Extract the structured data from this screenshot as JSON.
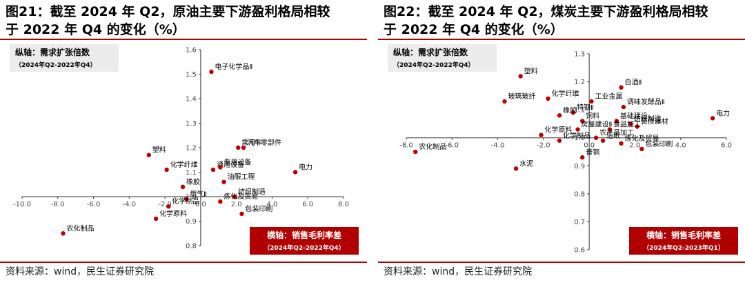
{
  "panels": [
    {
      "title_line1": "图21：截至 2024 年 Q2，原油主要下游盈利格局相较",
      "title_line2": "于 2022 年 Q4 的变化（%）",
      "yaxis_box_line1": "纵轴：需求扩张倍数",
      "yaxis_box_line2": "（2024年Q2-2022年Q4）",
      "xaxis_box_line1": "横轴：销售毛利率差",
      "xaxis_box_line2": "（2024年Q2-2022年Q4）",
      "source": "资料来源：wind，民生证券研究院"
    },
    {
      "title_line1": "图22：截至 2024 年 Q2，煤炭主要下游盈利格局相较",
      "title_line2": "于 2022 年 Q4 的变化（%）",
      "yaxis_box_line1": "纵轴：需求扩张倍数",
      "yaxis_box_line2": "（2024年Q2-2022年Q4）",
      "xaxis_box_line1": "横轴：销售毛利率差",
      "xaxis_box_line2": "（2024年Q2-2023年Q1）",
      "source": "资料来源：wind，民生证券研究院"
    }
  ],
  "colors": {
    "accent": "#b00000",
    "point": "#c00000",
    "box_gray": "#ececec"
  },
  "chart_data": [
    {
      "type": "scatter",
      "xlim": [
        -10,
        8
      ],
      "ylim": [
        0.8,
        1.6
      ],
      "x_ticks": [
        -10.0,
        -8.0,
        -6.0,
        -4.0,
        -2.0,
        0.0,
        2.0,
        4.0,
        6.0,
        8.0
      ],
      "y_ticks": [
        0.8,
        0.9,
        1.0,
        1.1,
        1.2,
        1.3,
        1.4,
        1.5,
        1.6
      ],
      "x_tick_labels": [
        "-10.0",
        "-8.0",
        "-6.0",
        "-4.0",
        "-2.0",
        "0.0",
        "2.0",
        "4.0",
        "6.0",
        "8.0"
      ],
      "y_tick_labels": [
        "0.8",
        "0.9",
        "1.0",
        "1.1",
        "1.2",
        "1.3",
        "1.4",
        "1.5",
        "1.6"
      ],
      "grid": false,
      "points": [
        {
          "label": "电子化学品Ⅱ",
          "x": 0.6,
          "y": 1.51
        },
        {
          "label": "乘用车",
          "x": 2.1,
          "y": 1.2
        },
        {
          "label": "汽车零部件",
          "x": 2.4,
          "y": 1.2
        },
        {
          "label": "塑料",
          "x": -2.9,
          "y": 1.17
        },
        {
          "label": "化学纤维",
          "x": -1.9,
          "y": 1.11
        },
        {
          "label": "通用设备",
          "x": 0.7,
          "y": 1.11
        },
        {
          "label": "专用设备",
          "x": 1.1,
          "y": 1.12
        },
        {
          "label": "电力",
          "x": 5.3,
          "y": 1.1
        },
        {
          "label": "橡胶",
          "x": -1.0,
          "y": 1.04
        },
        {
          "label": "油服工程",
          "x": 1.3,
          "y": 1.06
        },
        {
          "label": "纺织制造",
          "x": 1.9,
          "y": 1.0
        },
        {
          "label": "燃气Ⅱ",
          "x": -0.8,
          "y": 0.99
        },
        {
          "label": "炼化及贸易",
          "x": 1.1,
          "y": 0.98
        },
        {
          "label": "化学制品",
          "x": -1.8,
          "y": 0.96
        },
        {
          "label": "包装印刷",
          "x": 2.3,
          "y": 0.93
        },
        {
          "label": "化学原料",
          "x": -2.5,
          "y": 0.91
        },
        {
          "label": "农化制品",
          "x": -7.7,
          "y": 0.85
        }
      ]
    },
    {
      "type": "scatter",
      "xlim": [
        -8,
        6
      ],
      "ylim": [
        0.6,
        1.3
      ],
      "x_ticks": [
        -8.0,
        -6.0,
        -4.0,
        -2.0,
        0.0,
        2.0,
        4.0,
        6.0
      ],
      "y_ticks": [
        0.6,
        0.7,
        0.8,
        0.9,
        1.0,
        1.1,
        1.2,
        1.3
      ],
      "x_tick_labels": [
        "-8.0",
        "-6.0",
        "-4.0",
        "-2.0",
        "0.0",
        "2.0",
        "4.0",
        "6.0"
      ],
      "y_tick_labels": [
        "0.6",
        "0.7",
        "0.8",
        "0.9",
        "1.0",
        "1.1",
        "1.2",
        "1.3"
      ],
      "grid": false,
      "points": [
        {
          "label": "塑料",
          "x": -3.0,
          "y": 1.22
        },
        {
          "label": "白酒Ⅱ",
          "x": 1.4,
          "y": 1.18
        },
        {
          "label": "化学纤维",
          "x": -1.8,
          "y": 1.14
        },
        {
          "label": "工业金属",
          "x": 0.1,
          "y": 1.13
        },
        {
          "label": "玻璃玻纤",
          "x": -3.7,
          "y": 1.13
        },
        {
          "label": "调味发酵品Ⅱ",
          "x": 1.5,
          "y": 1.11
        },
        {
          "label": "特钢Ⅱ",
          "x": -0.7,
          "y": 1.09
        },
        {
          "label": "橡胶",
          "x": -1.3,
          "y": 1.08
        },
        {
          "label": "电力",
          "x": 5.4,
          "y": 1.07
        },
        {
          "label": "基础建设",
          "x": 1.2,
          "y": 1.06
        },
        {
          "label": "纺织制造",
          "x": 1.8,
          "y": 1.05
        },
        {
          "label": "装修建材",
          "x": 2.1,
          "y": 1.04
        },
        {
          "label": "饲料",
          "x": -0.3,
          "y": 1.06
        },
        {
          "label": "房屋建设Ⅱ",
          "x": -0.5,
          "y": 1.03
        },
        {
          "label": "食品加工",
          "x": 0.9,
          "y": 1.03
        },
        {
          "label": "农产品加工",
          "x": 0.3,
          "y": 1.0
        },
        {
          "label": "化学原料",
          "x": -2.1,
          "y": 1.01
        },
        {
          "label": "造纸",
          "x": 0.6,
          "y": 0.99
        },
        {
          "label": "化学制品",
          "x": -1.3,
          "y": 0.99
        },
        {
          "label": "炼化及贸易",
          "x": 1.4,
          "y": 0.98
        },
        {
          "label": "包装印刷",
          "x": 2.3,
          "y": 0.96
        },
        {
          "label": "普钢",
          "x": -0.3,
          "y": 0.93
        },
        {
          "label": "农化制品",
          "x": -7.6,
          "y": 0.95
        },
        {
          "label": "水泥",
          "x": -3.2,
          "y": 0.89
        }
      ]
    }
  ]
}
